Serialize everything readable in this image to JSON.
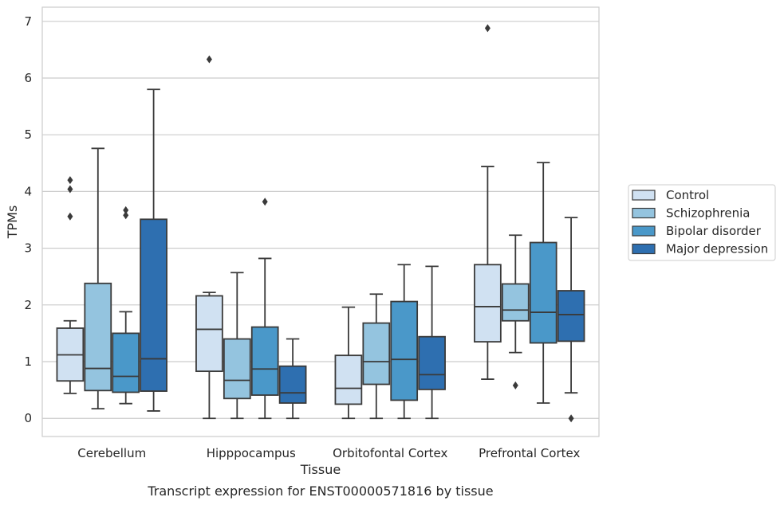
{
  "caption": "Transcript expression for ENST00000571816 by tissue",
  "chart_data": {
    "type": "box",
    "title": "",
    "xlabel": "Tissue",
    "ylabel": "TPMs",
    "ylim": [
      -0.32,
      7.25
    ],
    "yticks": [
      0,
      1,
      2,
      3,
      4,
      5,
      6,
      7
    ],
    "grid": true,
    "legend_position": "right",
    "categories": [
      "Cerebellum",
      "Hipppocampus",
      "Orbitofontal Cortex",
      "Prefrontal Cortex"
    ],
    "series": [
      {
        "name": "Control",
        "color": "#d0e1f2",
        "boxes": [
          {
            "whislo": 0.44,
            "q1": 0.66,
            "med": 1.12,
            "q3": 1.59,
            "whishi": 1.72,
            "fliers": [
              3.56,
              4.04,
              4.2
            ]
          },
          {
            "whislo": 0.0,
            "q1": 0.83,
            "med": 1.57,
            "q3": 2.16,
            "whishi": 2.22,
            "fliers": [
              6.33
            ]
          },
          {
            "whislo": 0.0,
            "q1": 0.25,
            "med": 0.53,
            "q3": 1.11,
            "whishi": 1.96,
            "fliers": []
          },
          {
            "whislo": 0.69,
            "q1": 1.35,
            "med": 1.97,
            "q3": 2.71,
            "whishi": 4.44,
            "fliers": [
              6.88
            ]
          }
        ]
      },
      {
        "name": "Schizophrenia",
        "color": "#94c4df",
        "boxes": [
          {
            "whislo": 0.17,
            "q1": 0.49,
            "med": 0.88,
            "q3": 2.38,
            "whishi": 4.76,
            "fliers": []
          },
          {
            "whislo": 0.0,
            "q1": 0.35,
            "med": 0.67,
            "q3": 1.4,
            "whishi": 2.57,
            "fliers": []
          },
          {
            "whislo": 0.0,
            "q1": 0.6,
            "med": 1.0,
            "q3": 1.68,
            "whishi": 2.19,
            "fliers": []
          },
          {
            "whislo": 1.16,
            "q1": 1.72,
            "med": 1.91,
            "q3": 2.37,
            "whishi": 3.23,
            "fliers": [
              0.58
            ]
          }
        ]
      },
      {
        "name": "Bipolar disorder",
        "color": "#4a98c9",
        "boxes": [
          {
            "whislo": 0.26,
            "q1": 0.46,
            "med": 0.74,
            "q3": 1.5,
            "whishi": 1.88,
            "fliers": [
              3.58,
              3.67
            ]
          },
          {
            "whislo": 0.0,
            "q1": 0.41,
            "med": 0.87,
            "q3": 1.61,
            "whishi": 2.82,
            "fliers": [
              3.82
            ]
          },
          {
            "whislo": 0.0,
            "q1": 0.32,
            "med": 1.04,
            "q3": 2.06,
            "whishi": 2.71,
            "fliers": []
          },
          {
            "whislo": 0.27,
            "q1": 1.33,
            "med": 1.87,
            "q3": 3.1,
            "whishi": 4.51,
            "fliers": []
          }
        ]
      },
      {
        "name": "Major depression",
        "color": "#2e6fb0",
        "boxes": [
          {
            "whislo": 0.13,
            "q1": 0.48,
            "med": 1.05,
            "q3": 3.51,
            "whishi": 5.8,
            "fliers": []
          },
          {
            "whislo": 0.0,
            "q1": 0.27,
            "med": 0.45,
            "q3": 0.92,
            "whishi": 1.4,
            "fliers": []
          },
          {
            "whislo": 0.0,
            "q1": 0.51,
            "med": 0.77,
            "q3": 1.44,
            "whishi": 2.68,
            "fliers": []
          },
          {
            "whislo": 0.45,
            "q1": 1.36,
            "med": 1.83,
            "q3": 2.25,
            "whishi": 3.54,
            "fliers": [
              0.0
            ]
          }
        ]
      }
    ]
  }
}
